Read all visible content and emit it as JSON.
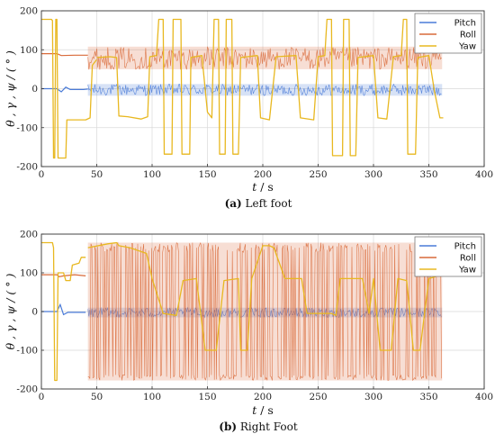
{
  "chart_data": [
    {
      "type": "line",
      "caption_letter": "(a)",
      "caption_text": "Left foot",
      "xlabel_var": "t",
      "xlabel_unit": "/ s",
      "ylabel": "θ , γ , ψ / ( ° )",
      "xlim": [
        0,
        400
      ],
      "ylim": [
        -200,
        200
      ],
      "xticks": [
        0,
        50,
        100,
        150,
        200,
        250,
        300,
        350,
        400
      ],
      "yticks": [
        -200,
        -100,
        0,
        100,
        200
      ],
      "grid": true,
      "legend_position": "top-right",
      "series": [
        {
          "name": "Pitch",
          "color": "#4a7bd8",
          "initial": [
            [
              0,
              0
            ],
            [
              14,
              0
            ],
            [
              18,
              -8
            ],
            [
              22,
              4
            ],
            [
              26,
              -2
            ],
            [
              38,
              -2
            ],
            [
              42,
              -1
            ]
          ],
          "band_center": -3,
          "band_low": -18,
          "band_high": 12,
          "band_start": 42,
          "band_end": 362
        },
        {
          "name": "Roll",
          "color": "#d96a3a",
          "initial": [
            [
              0,
              90
            ],
            [
              14,
              90
            ],
            [
              18,
              85
            ],
            [
              30,
              86
            ],
            [
              42,
              86
            ]
          ],
          "band_center": 78,
          "band_low": 50,
          "band_high": 108,
          "band_start": 42,
          "band_end": 362
        },
        {
          "name": "Yaw",
          "color": "#e8b820",
          "segments": [
            [
              [
                0,
                178
              ],
              [
                9,
                178
              ],
              [
                10,
                175
              ],
              [
                11,
                -178
              ],
              [
                12,
                -178
              ],
              [
                13,
                178
              ],
              [
                14,
                178
              ],
              [
                15,
                -178
              ],
              [
                22,
                -178
              ],
              [
                23,
                -80
              ],
              [
                40,
                -80
              ],
              [
                44,
                -75
              ],
              [
                46,
                60
              ],
              [
                50,
                75
              ]
            ],
            [
              [
                50,
                80
              ],
              [
                62,
                82
              ],
              [
                68,
                80
              ],
              [
                70,
                -70
              ],
              [
                78,
                -72
              ],
              [
                90,
                -78
              ],
              [
                96,
                -72
              ],
              [
                98,
                82
              ],
              [
                104,
                85
              ],
              [
                106,
                178
              ],
              [
                110,
                178
              ],
              [
                111,
                -168
              ],
              [
                118,
                -168
              ],
              [
                119,
                178
              ],
              [
                126,
                178
              ],
              [
                127,
                -168
              ],
              [
                134,
                -168
              ],
              [
                135,
                80
              ],
              [
                145,
                85
              ],
              [
                150,
                -60
              ],
              [
                154,
                -75
              ],
              [
                156,
                178
              ],
              [
                160,
                178
              ],
              [
                161,
                -168
              ],
              [
                166,
                -168
              ],
              [
                167,
                178
              ],
              [
                172,
                178
              ],
              [
                173,
                -168
              ],
              [
                178,
                -168
              ],
              [
                180,
                80
              ],
              [
                195,
                85
              ],
              [
                198,
                -75
              ],
              [
                206,
                -80
              ],
              [
                212,
                82
              ],
              [
                230,
                85
              ],
              [
                234,
                -75
              ],
              [
                246,
                -80
              ],
              [
                250,
                82
              ],
              [
                256,
                85
              ],
              [
                258,
                178
              ],
              [
                262,
                178
              ],
              [
                263,
                -172
              ],
              [
                272,
                -172
              ],
              [
                273,
                178
              ],
              [
                278,
                178
              ],
              [
                279,
                -172
              ],
              [
                284,
                -172
              ],
              [
                286,
                80
              ],
              [
                300,
                85
              ],
              [
                304,
                -75
              ],
              [
                312,
                -78
              ],
              [
                318,
                82
              ],
              [
                325,
                85
              ],
              [
                327,
                178
              ],
              [
                330,
                178
              ],
              [
                331,
                -168
              ],
              [
                338,
                -168
              ],
              [
                340,
                80
              ],
              [
                350,
                85
              ],
              [
                355,
                -5
              ],
              [
                360,
                -75
              ],
              [
                363,
                -75
              ]
            ]
          ]
        }
      ]
    },
    {
      "type": "line",
      "caption_letter": "(b)",
      "caption_text": "Right Foot",
      "xlabel_var": "t",
      "xlabel_unit": "/ s",
      "ylabel": "θ , γ , ψ / ( ° )",
      "xlim": [
        0,
        400
      ],
      "ylim": [
        -200,
        200
      ],
      "xticks": [
        0,
        50,
        100,
        150,
        200,
        250,
        300,
        350,
        400
      ],
      "yticks": [
        -200,
        -100,
        0,
        100,
        200
      ],
      "grid": true,
      "legend_position": "top-right",
      "series": [
        {
          "name": "Pitch",
          "color": "#4a7bd8",
          "initial": [
            [
              0,
              0
            ],
            [
              14,
              0
            ],
            [
              17,
              18
            ],
            [
              20,
              -8
            ],
            [
              24,
              -2
            ],
            [
              40,
              -2
            ]
          ],
          "band_center": -3,
          "band_low": -15,
          "band_high": 10,
          "band_start": 42,
          "band_end": 362
        },
        {
          "name": "Roll",
          "color": "#d96a3a",
          "initial": [
            [
              0,
              95
            ],
            [
              14,
              95
            ],
            [
              16,
              90
            ],
            [
              20,
              92
            ],
            [
              30,
              95
            ],
            [
              40,
              92
            ]
          ],
          "band_center": 100,
          "band_low": -178,
          "band_high": 178,
          "band_start": 42,
          "band_end": 362
        },
        {
          "name": "Yaw",
          "color": "#e8b820",
          "segments": [
            [
              [
                0,
                178
              ],
              [
                10,
                178
              ],
              [
                11,
                165
              ],
              [
                12,
                -178
              ],
              [
                14,
                -178
              ],
              [
                15,
                100
              ],
              [
                20,
                100
              ],
              [
                22,
                80
              ],
              [
                26,
                80
              ],
              [
                28,
                120
              ],
              [
                34,
                125
              ],
              [
                36,
                140
              ],
              [
                40,
                140
              ]
            ],
            [
              [
                42,
                165
              ],
              [
                60,
                175
              ],
              [
                68,
                178
              ],
              [
                70,
                170
              ],
              [
                80,
                165
              ],
              [
                95,
                150
              ],
              [
                100,
                85
              ],
              [
                110,
                -5
              ],
              [
                122,
                -10
              ],
              [
                128,
                80
              ],
              [
                140,
                85
              ],
              [
                148,
                -100
              ],
              [
                158,
                -100
              ],
              [
                165,
                80
              ],
              [
                178,
                85
              ],
              [
                180,
                -100
              ],
              [
                186,
                -100
              ],
              [
                190,
                85
              ],
              [
                200,
                170
              ],
              [
                206,
                170
              ],
              [
                210,
                165
              ],
              [
                220,
                85
              ],
              [
                235,
                85
              ],
              [
                240,
                -5
              ],
              [
                262,
                -5
              ],
              [
                266,
                -10
              ],
              [
                270,
                85
              ],
              [
                290,
                85
              ],
              [
                296,
                -5
              ],
              [
                300,
                85
              ],
              [
                306,
                -100
              ],
              [
                316,
                -100
              ],
              [
                322,
                85
              ],
              [
                330,
                80
              ],
              [
                336,
                -100
              ],
              [
                342,
                -100
              ],
              [
                350,
                85
              ],
              [
                356,
                90
              ]
            ]
          ]
        }
      ]
    }
  ]
}
